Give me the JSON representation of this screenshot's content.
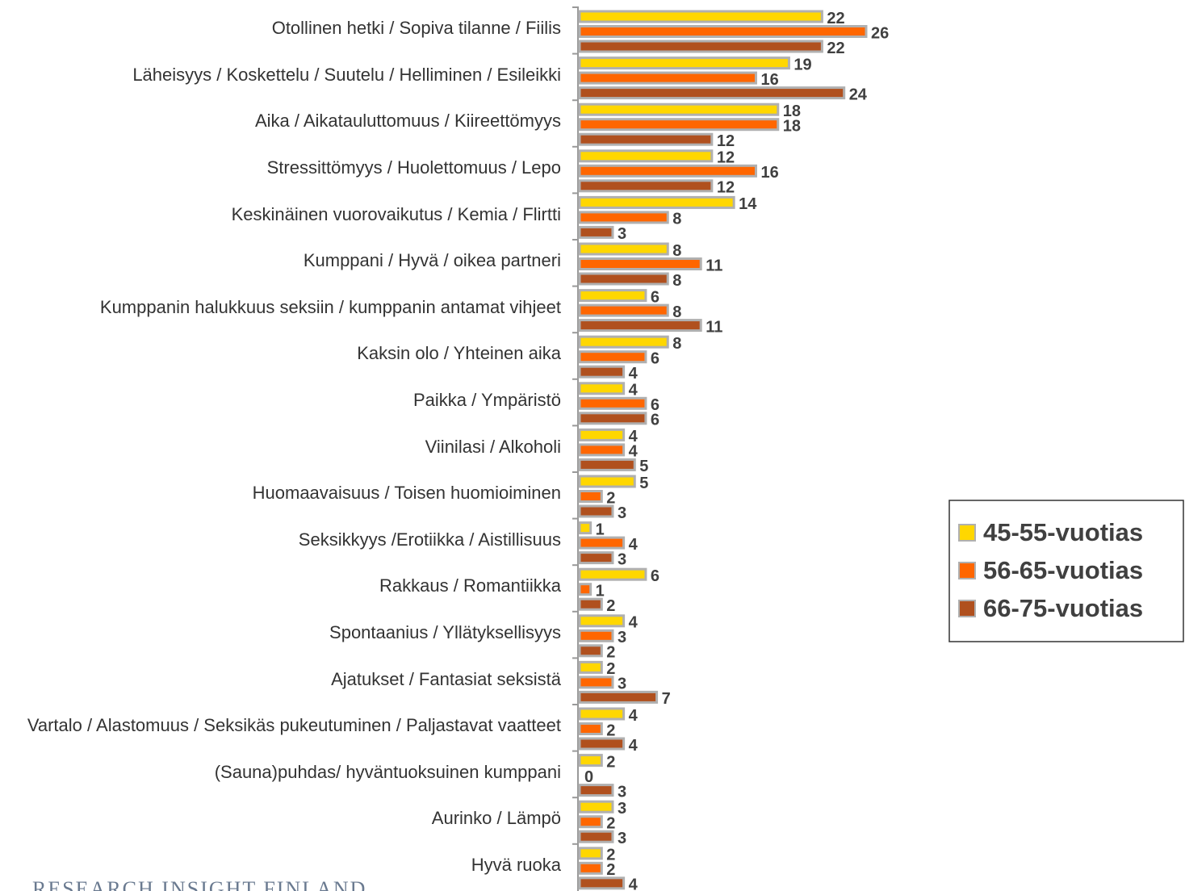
{
  "chart_data": {
    "type": "bar",
    "orientation": "horizontal",
    "categories": [
      "Otollinen hetki / Sopiva tilanne / Fiilis",
      "Läheisyys / Koskettelu / Suutelu / Helliminen / Esileikki",
      "Aika / Aikatauluttomuus / Kiireettömyys",
      "Stressittömyys / Huolettomuus / Lepo",
      "Keskinäinen vuorovaikutus / Kemia / Flirtti",
      "Kumppani / Hyvä / oikea partneri",
      "Kumppanin halukkuus seksiin / kumppanin antamat vihjeet",
      "Kaksin olo / Yhteinen aika",
      "Paikka / Ympäristö",
      "Viinilasi / Alkoholi",
      "Huomaavaisuus / Toisen huomioiminen",
      "Seksikkyys /Erotiikka / Aistillisuus",
      "Rakkaus / Romantiikka",
      "Spontaanius / Yllätyksellisyys",
      "Ajatukset / Fantasiat seksistä",
      "Vartalo / Alastomuus / Seksikäs pukeutuminen / Paljastavat vaatteet",
      "(Sauna)puhdas/ hyväntuoksuinen  kumppani",
      "Aurinko / Lämpö",
      "Hyvä ruoka"
    ],
    "series": [
      {
        "name": "45-55-vuotias",
        "color": "#ffd700",
        "values": [
          22,
          19,
          18,
          12,
          14,
          8,
          6,
          8,
          4,
          4,
          5,
          1,
          6,
          4,
          2,
          4,
          2,
          3,
          2
        ]
      },
      {
        "name": "56-65-vuotias",
        "color": "#ff6600",
        "values": [
          26,
          16,
          18,
          16,
          8,
          11,
          8,
          6,
          6,
          4,
          2,
          4,
          1,
          3,
          3,
          2,
          0,
          2,
          2
        ]
      },
      {
        "name": "66-75-vuotias",
        "color": "#b0501e",
        "values": [
          22,
          24,
          12,
          12,
          3,
          8,
          11,
          4,
          6,
          5,
          3,
          3,
          2,
          2,
          7,
          4,
          3,
          3,
          4
        ]
      }
    ],
    "legend": "right",
    "logo_text": "RESEARCH INSIGHT FINLAND"
  }
}
